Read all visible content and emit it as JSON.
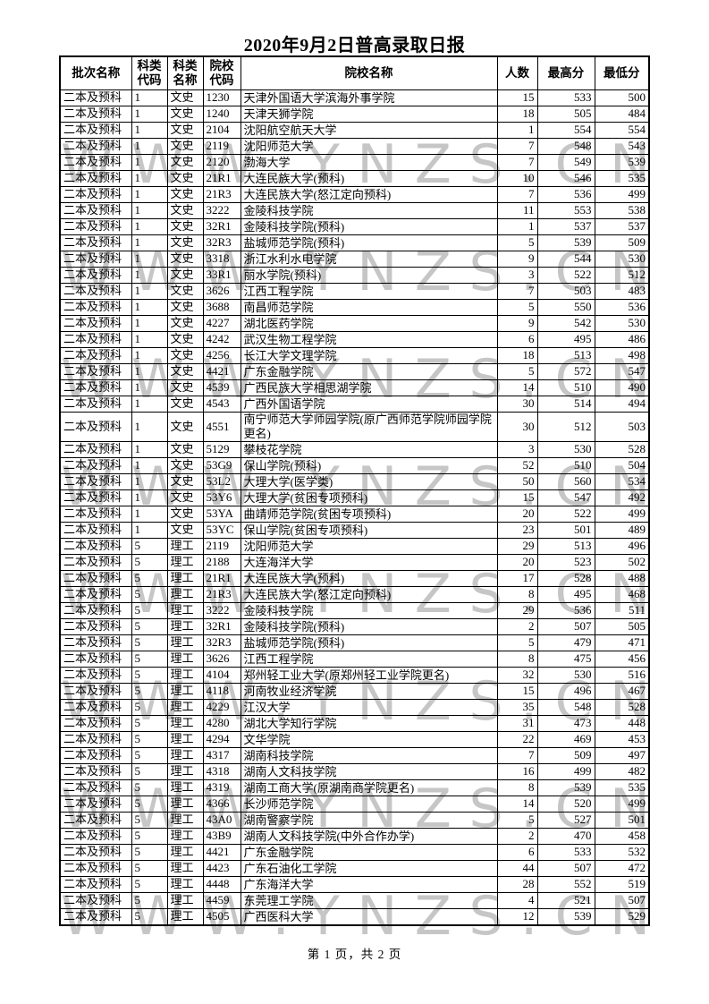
{
  "title": "2020年9月2日普高录取日报",
  "watermark_text": "WWW.YNZS.CN",
  "footer": {
    "page_info": "第 1 页，共 2 页"
  },
  "table": {
    "headers": [
      "批次名称",
      "科类\n代码",
      "科类\n名称",
      "院校\n代码",
      "院校名称",
      "人数",
      "最高分",
      "最低分"
    ],
    "rows": [
      [
        "二本及预科",
        "1",
        "文史",
        "1230",
        "天津外国语大学滨海外事学院",
        15,
        533,
        500
      ],
      [
        "二本及预科",
        "1",
        "文史",
        "1240",
        "天津天狮学院",
        18,
        505,
        484
      ],
      [
        "二本及预科",
        "1",
        "文史",
        "2104",
        "沈阳航空航天大学",
        1,
        554,
        554
      ],
      [
        "二本及预科",
        "1",
        "文史",
        "2119",
        "沈阳师范大学",
        7,
        548,
        543
      ],
      [
        "二本及预科",
        "1",
        "文史",
        "2120",
        "渤海大学",
        7,
        549,
        539
      ],
      [
        "二本及预科",
        "1",
        "文史",
        "21R1",
        "大连民族大学(预科)",
        10,
        546,
        535
      ],
      [
        "二本及预科",
        "1",
        "文史",
        "21R3",
        "大连民族大学(怒江定向预科)",
        7,
        536,
        499
      ],
      [
        "二本及预科",
        "1",
        "文史",
        "3222",
        "金陵科技学院",
        11,
        553,
        538
      ],
      [
        "二本及预科",
        "1",
        "文史",
        "32R1",
        "金陵科技学院(预科)",
        1,
        537,
        537
      ],
      [
        "二本及预科",
        "1",
        "文史",
        "32R3",
        "盐城师范学院(预科)",
        5,
        539,
        509
      ],
      [
        "二本及预科",
        "1",
        "文史",
        "3318",
        "浙江水利水电学院",
        9,
        544,
        530
      ],
      [
        "二本及预科",
        "1",
        "文史",
        "33R1",
        "丽水学院(预科)",
        3,
        522,
        512
      ],
      [
        "二本及预科",
        "1",
        "文史",
        "3626",
        "江西工程学院",
        7,
        503,
        483
      ],
      [
        "二本及预科",
        "1",
        "文史",
        "3688",
        "南昌师范学院",
        5,
        550,
        536
      ],
      [
        "二本及预科",
        "1",
        "文史",
        "4227",
        "湖北医药学院",
        9,
        542,
        530
      ],
      [
        "二本及预科",
        "1",
        "文史",
        "4242",
        "武汉生物工程学院",
        6,
        495,
        486
      ],
      [
        "二本及预科",
        "1",
        "文史",
        "4256",
        "长江大学文理学院",
        18,
        513,
        498
      ],
      [
        "二本及预科",
        "1",
        "文史",
        "4421",
        "广东金融学院",
        5,
        572,
        547
      ],
      [
        "二本及预科",
        "1",
        "文史",
        "4539",
        "广西民族大学相思湖学院",
        14,
        510,
        490
      ],
      [
        "二本及预科",
        "1",
        "文史",
        "4543",
        "广西外国语学院",
        30,
        514,
        494
      ],
      [
        "二本及预科",
        "1",
        "文史",
        "4551",
        "南宁师范大学师园学院(原广西师范学院师园学院更名)",
        30,
        512,
        503
      ],
      [
        "二本及预科",
        "1",
        "文史",
        "5129",
        "攀枝花学院",
        3,
        530,
        528
      ],
      [
        "二本及预科",
        "1",
        "文史",
        "53G9",
        "保山学院(预科)",
        52,
        510,
        504
      ],
      [
        "二本及预科",
        "1",
        "文史",
        "53L2",
        "大理大学(医学类)",
        50,
        560,
        534
      ],
      [
        "二本及预科",
        "1",
        "文史",
        "53Y6",
        "大理大学(贫困专项预科)",
        15,
        547,
        492
      ],
      [
        "二本及预科",
        "1",
        "文史",
        "53YA",
        "曲靖师范学院(贫困专项预科)",
        20,
        522,
        499
      ],
      [
        "二本及预科",
        "1",
        "文史",
        "53YC",
        "保山学院(贫困专项预科)",
        23,
        501,
        489
      ],
      [
        "二本及预科",
        "5",
        "理工",
        "2119",
        "沈阳师范大学",
        29,
        513,
        496
      ],
      [
        "二本及预科",
        "5",
        "理工",
        "2188",
        "大连海洋大学",
        20,
        523,
        502
      ],
      [
        "二本及预科",
        "5",
        "理工",
        "21R1",
        "大连民族大学(预科)",
        17,
        528,
        488
      ],
      [
        "二本及预科",
        "5",
        "理工",
        "21R3",
        "大连民族大学(怒江定向预科)",
        8,
        495,
        468
      ],
      [
        "二本及预科",
        "5",
        "理工",
        "3222",
        "金陵科技学院",
        29,
        536,
        511
      ],
      [
        "二本及预科",
        "5",
        "理工",
        "32R1",
        "金陵科技学院(预科)",
        2,
        507,
        505
      ],
      [
        "二本及预科",
        "5",
        "理工",
        "32R3",
        "盐城师范学院(预科)",
        5,
        479,
        471
      ],
      [
        "二本及预科",
        "5",
        "理工",
        "3626",
        "江西工程学院",
        8,
        475,
        456
      ],
      [
        "二本及预科",
        "5",
        "理工",
        "4104",
        "郑州轻工业大学(原郑州轻工业学院更名)",
        32,
        530,
        516
      ],
      [
        "二本及预科",
        "5",
        "理工",
        "4118",
        "河南牧业经济学院",
        15,
        496,
        467
      ],
      [
        "二本及预科",
        "5",
        "理工",
        "4229",
        "江汉大学",
        35,
        548,
        528
      ],
      [
        "二本及预科",
        "5",
        "理工",
        "4280",
        "湖北大学知行学院",
        31,
        473,
        448
      ],
      [
        "二本及预科",
        "5",
        "理工",
        "4294",
        "文华学院",
        22,
        469,
        453
      ],
      [
        "二本及预科",
        "5",
        "理工",
        "4317",
        "湖南科技学院",
        7,
        509,
        497
      ],
      [
        "二本及预科",
        "5",
        "理工",
        "4318",
        "湖南人文科技学院",
        16,
        499,
        482
      ],
      [
        "二本及预科",
        "5",
        "理工",
        "4319",
        "湖南工商大学(原湖南商学院更名)",
        8,
        539,
        535
      ],
      [
        "二本及预科",
        "5",
        "理工",
        "4366",
        "长沙师范学院",
        14,
        520,
        499
      ],
      [
        "二本及预科",
        "5",
        "理工",
        "43A0",
        "湖南警察学院",
        5,
        527,
        501
      ],
      [
        "二本及预科",
        "5",
        "理工",
        "43B9",
        "湖南人文科技学院(中外合作办学)",
        2,
        470,
        458
      ],
      [
        "二本及预科",
        "5",
        "理工",
        "4421",
        "广东金融学院",
        6,
        533,
        532
      ],
      [
        "二本及预科",
        "5",
        "理工",
        "4423",
        "广东石油化工学院",
        44,
        507,
        472
      ],
      [
        "二本及预科",
        "5",
        "理工",
        "4448",
        "广东海洋大学",
        28,
        552,
        519
      ],
      [
        "二本及预科",
        "5",
        "理工",
        "4459",
        "东莞理工学院",
        4,
        521,
        507
      ],
      [
        "二本及预科",
        "5",
        "理工",
        "4505",
        "广西医科大学",
        12,
        539,
        529
      ]
    ]
  }
}
